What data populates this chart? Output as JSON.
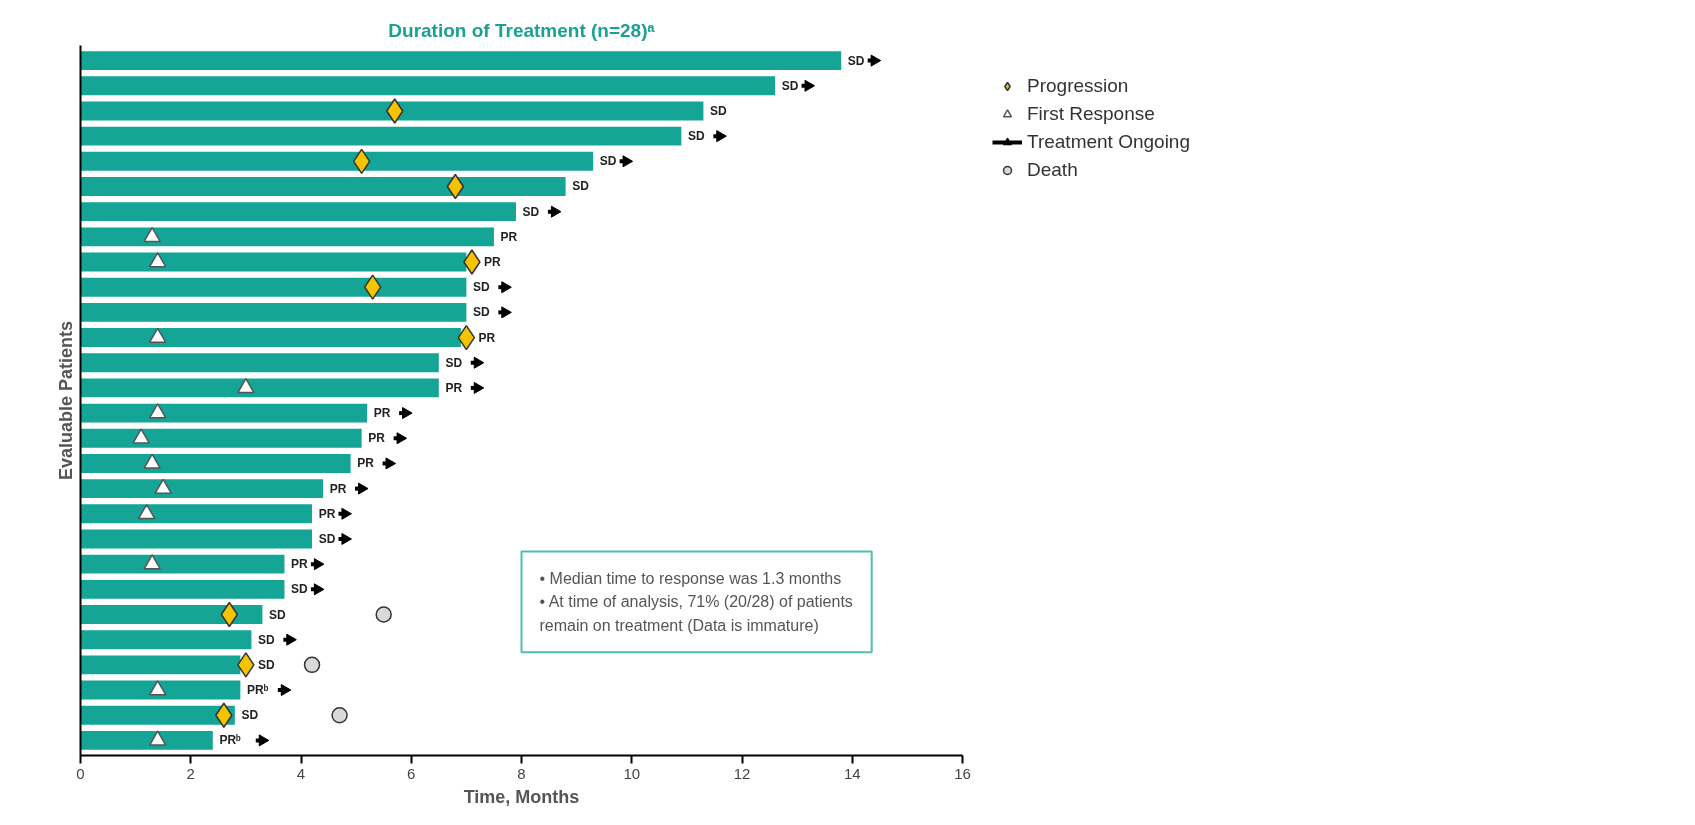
{
  "chart_data": {
    "type": "bar",
    "orientation": "horizontal",
    "title": "Duration of Treatment (n=28)ᵃ",
    "xlabel": "Time, Months",
    "ylabel": "Evaluable Patients",
    "categories": [
      null,
      null,
      null,
      null,
      null,
      null,
      null,
      null,
      null,
      null,
      null,
      null,
      null,
      null,
      null,
      null,
      null,
      null,
      null,
      null,
      null,
      null,
      null,
      null,
      null,
      null,
      null,
      null
    ],
    "xlim": [
      0,
      16
    ],
    "xticks": [
      0,
      2,
      4,
      6,
      8,
      10,
      12,
      14,
      16
    ],
    "tick_labels": "x",
    "legend": "right",
    "series": [
      {
        "color": "#14a596",
        "values": [
          13.8,
          12.6,
          11.3,
          10.9,
          9.3,
          8.8,
          7.9,
          7.5,
          7.0,
          7.0,
          7.0,
          6.9,
          6.5,
          6.5,
          5.2,
          5.1,
          4.9,
          4.4,
          4.2,
          4.2,
          3.7,
          3.7,
          3.3,
          3.1,
          2.9,
          2.9,
          2.8,
          2.4
        ],
        "value_labels": [
          "SD",
          "SD",
          "SD",
          "SD",
          "SD",
          "SD",
          "SD",
          "PR",
          "PR",
          "SD",
          "SD",
          "PR",
          "SD",
          "PR",
          "PR",
          "PR",
          "PR",
          "PR",
          "PR",
          "SD",
          "PR",
          "SD",
          "SD",
          "SD",
          "SD",
          "PRᵇ",
          "SD",
          "PRᵇ"
        ]
      },
      {
        "name": "Progression",
        "type": "scatter",
        "marker": "diamond",
        "color": "#f5c400",
        "values": [
          null,
          null,
          5.7,
          null,
          5.1,
          6.8,
          null,
          null,
          7.1,
          5.3,
          null,
          7.0,
          null,
          null,
          null,
          null,
          null,
          null,
          null,
          null,
          null,
          null,
          2.7,
          null,
          3.0,
          null,
          2.6,
          null
        ]
      },
      {
        "name": "First Response",
        "type": "scatter",
        "marker": "triangle",
        "color": "#ffffff",
        "values": [
          null,
          null,
          null,
          null,
          null,
          null,
          null,
          1.3,
          1.4,
          null,
          null,
          1.4,
          null,
          3.0,
          1.4,
          1.1,
          1.3,
          1.5,
          1.2,
          null,
          1.3,
          null,
          null,
          null,
          null,
          1.4,
          null,
          1.4
        ]
      },
      {
        "name": "Treatment Ongoing",
        "type": "scatter",
        "color": "#000000",
        "values": [
          14.4,
          13.2,
          null,
          11.6,
          9.9,
          null,
          8.6,
          null,
          null,
          7.7,
          7.7,
          null,
          7.2,
          7.2,
          5.9,
          5.8,
          5.6,
          5.1,
          4.8,
          4.8,
          4.3,
          4.3,
          null,
          3.8,
          null,
          3.7,
          null,
          3.3
        ]
      },
      {
        "name": "Death",
        "type": "scatter",
        "marker": "circle",
        "color": "#d9d9d9",
        "values": [
          null,
          null,
          null,
          null,
          null,
          null,
          null,
          null,
          null,
          null,
          null,
          null,
          null,
          null,
          null,
          null,
          null,
          null,
          null,
          null,
          null,
          null,
          5.5,
          null,
          4.2,
          null,
          4.7,
          null
        ]
      }
    ],
    "annotations": [
      "• Median time to response was 1.3 months",
      "• At time of analysis, 71% (20/28) of patients remain on treatment (Data is immature)"
    ]
  }
}
